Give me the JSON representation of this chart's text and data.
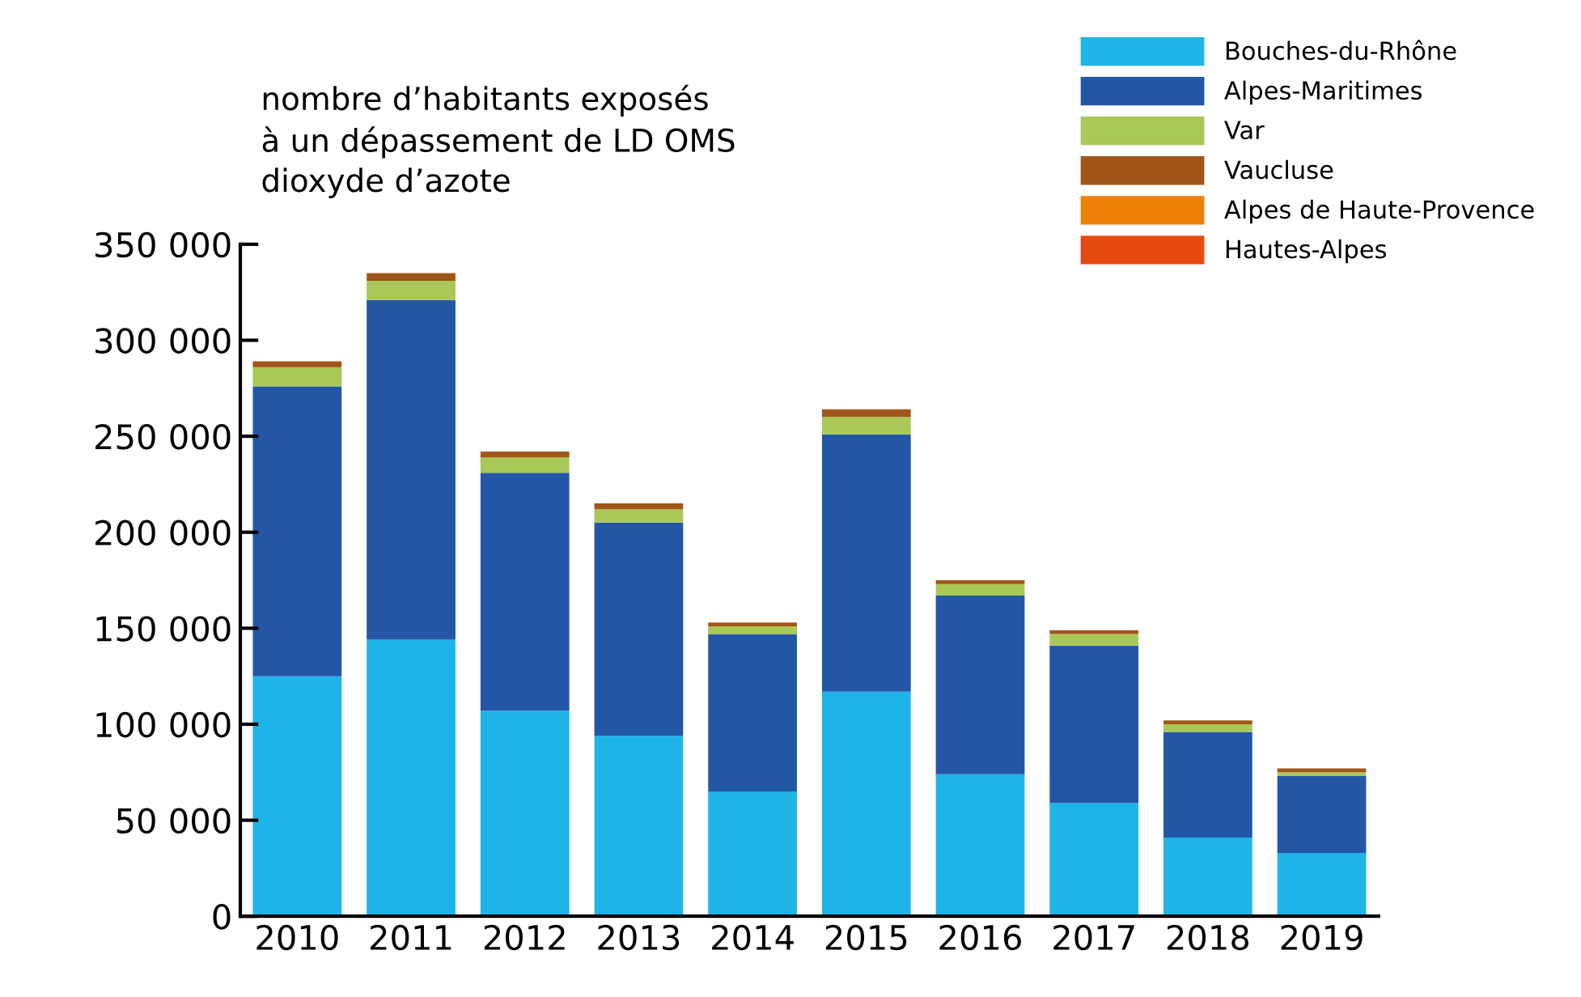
{
  "chart_data": {
    "type": "bar",
    "stacked": true,
    "title": "nombre d’habitants exposés\nà un dépassement de LD OMS\ndioxyde d’azote",
    "categories": [
      "2010",
      "2011",
      "2012",
      "2013",
      "2014",
      "2015",
      "2016",
      "2017",
      "2018",
      "2019"
    ],
    "series": [
      {
        "name": "Bouches-du-Rhône",
        "color": "#1eb4e8",
        "values": [
          125000,
          144000,
          107000,
          94000,
          65000,
          117000,
          74000,
          59000,
          41000,
          33000
        ]
      },
      {
        "name": "Alpes-Maritimes",
        "color": "#2456a6",
        "values": [
          151000,
          177000,
          124000,
          111000,
          82000,
          134000,
          93000,
          82000,
          55000,
          40000
        ]
      },
      {
        "name": "Var",
        "color": "#a8c957",
        "values": [
          10000,
          10000,
          8000,
          7000,
          4000,
          9000,
          6000,
          6000,
          4000,
          2000
        ]
      },
      {
        "name": "Vaucluse",
        "color": "#a0561a",
        "values": [
          3000,
          4000,
          3000,
          3000,
          2000,
          4000,
          2000,
          2000,
          2000,
          2000
        ]
      },
      {
        "name": "Alpes de Haute-Provence",
        "color": "#f07f0a",
        "values": [
          0,
          0,
          0,
          0,
          0,
          0,
          0,
          0,
          0,
          0
        ]
      },
      {
        "name": "Hautes-Alpes",
        "color": "#e64a0f",
        "values": [
          0,
          0,
          0,
          0,
          0,
          0,
          0,
          0,
          0,
          0
        ]
      }
    ],
    "ylim": [
      0,
      350000
    ],
    "yticks": [
      0,
      {
        "value": 50000,
        "label": "50 000"
      },
      {
        "value": 100000,
        "label": "100 000"
      },
      {
        "value": 150000,
        "label": "150 000"
      },
      {
        "value": 200000,
        "label": "200 000"
      },
      {
        "value": 250000,
        "label": "250 000"
      },
      {
        "value": 300000,
        "label": "300 000"
      },
      {
        "value": 350000,
        "label": "350 000"
      }
    ],
    "grid": false,
    "legend": "top right"
  }
}
